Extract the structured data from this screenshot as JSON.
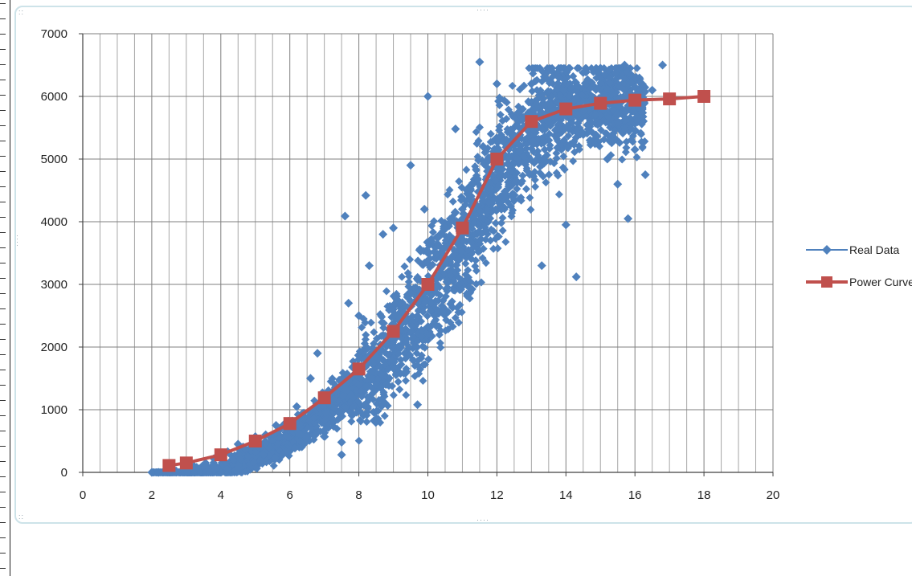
{
  "chart_data": {
    "type": "scatter",
    "title": "",
    "xlabel": "",
    "ylabel": "",
    "xlim": [
      0,
      20
    ],
    "ylim": [
      0,
      7000
    ],
    "x_major_step": 2,
    "x_minor_step": 0.5,
    "y_major_step": 1000,
    "grid": true,
    "legend_position": "right",
    "x_tick_labels": [
      "0",
      "2",
      "4",
      "6",
      "8",
      "10",
      "12",
      "14",
      "16",
      "18",
      "20"
    ],
    "y_tick_labels": [
      "0",
      "1000",
      "2000",
      "3000",
      "4000",
      "5000",
      "6000",
      "7000"
    ],
    "series": [
      {
        "name": "Real Data",
        "type": "scatter",
        "marker": "diamond",
        "color": "#4f81bd",
        "points": [
          [
            2.0,
            0
          ],
          [
            2.2,
            0
          ],
          [
            2.5,
            10
          ],
          [
            3.0,
            50
          ],
          [
            3.3,
            80
          ],
          [
            3.8,
            220
          ],
          [
            4.2,
            330
          ],
          [
            4.5,
            450
          ],
          [
            5.0,
            570
          ],
          [
            5.3,
            600
          ],
          [
            5.6,
            750
          ],
          [
            6.2,
            1050
          ],
          [
            6.6,
            1500
          ],
          [
            6.8,
            1900
          ],
          [
            7.5,
            280
          ],
          [
            7.5,
            480
          ],
          [
            7.6,
            4090
          ],
          [
            7.7,
            2700
          ],
          [
            8.0,
            1400
          ],
          [
            8.0,
            2500
          ],
          [
            8.2,
            4420
          ],
          [
            8.3,
            3300
          ],
          [
            8.5,
            1850
          ],
          [
            8.7,
            3800
          ],
          [
            8.8,
            2050
          ],
          [
            9.0,
            2100
          ],
          [
            9.0,
            3900
          ],
          [
            9.3,
            2550
          ],
          [
            9.5,
            4900
          ],
          [
            9.7,
            1080
          ],
          [
            9.9,
            4200
          ],
          [
            10.0,
            6000
          ],
          [
            10.2,
            2500
          ],
          [
            10.5,
            3900
          ],
          [
            10.8,
            5480
          ],
          [
            11.0,
            4200
          ],
          [
            11.2,
            2950
          ],
          [
            11.5,
            6550
          ],
          [
            11.6,
            5200
          ],
          [
            12.0,
            6200
          ],
          [
            12.3,
            4400
          ],
          [
            12.6,
            5000
          ],
          [
            13.0,
            6200
          ],
          [
            13.3,
            3300
          ],
          [
            13.5,
            5300
          ],
          [
            13.8,
            6300
          ],
          [
            14.0,
            3950
          ],
          [
            14.3,
            3120
          ],
          [
            14.5,
            6380
          ],
          [
            14.7,
            5300
          ],
          [
            15.0,
            6450
          ],
          [
            15.2,
            5000
          ],
          [
            15.5,
            4600
          ],
          [
            15.7,
            6500
          ],
          [
            15.8,
            4050
          ],
          [
            16.0,
            6150
          ],
          [
            16.0,
            5150
          ],
          [
            16.3,
            4750
          ],
          [
            16.5,
            6100
          ],
          [
            16.8,
            6500
          ]
        ]
      },
      {
        "name": "Power Curve",
        "type": "line",
        "marker": "square",
        "color": "#c0504d",
        "points": [
          [
            2.5,
            110
          ],
          [
            3.0,
            150
          ],
          [
            4.0,
            280
          ],
          [
            5.0,
            500
          ],
          [
            6.0,
            780
          ],
          [
            7.0,
            1190
          ],
          [
            8.0,
            1650
          ],
          [
            9.0,
            2250
          ],
          [
            10.0,
            3000
          ],
          [
            11.0,
            3900
          ],
          [
            12.0,
            5000
          ],
          [
            13.0,
            5600
          ],
          [
            14.0,
            5800
          ],
          [
            15.0,
            5890
          ],
          [
            16.0,
            5940
          ],
          [
            17.0,
            5960
          ],
          [
            18.0,
            6000
          ]
        ]
      }
    ]
  }
}
